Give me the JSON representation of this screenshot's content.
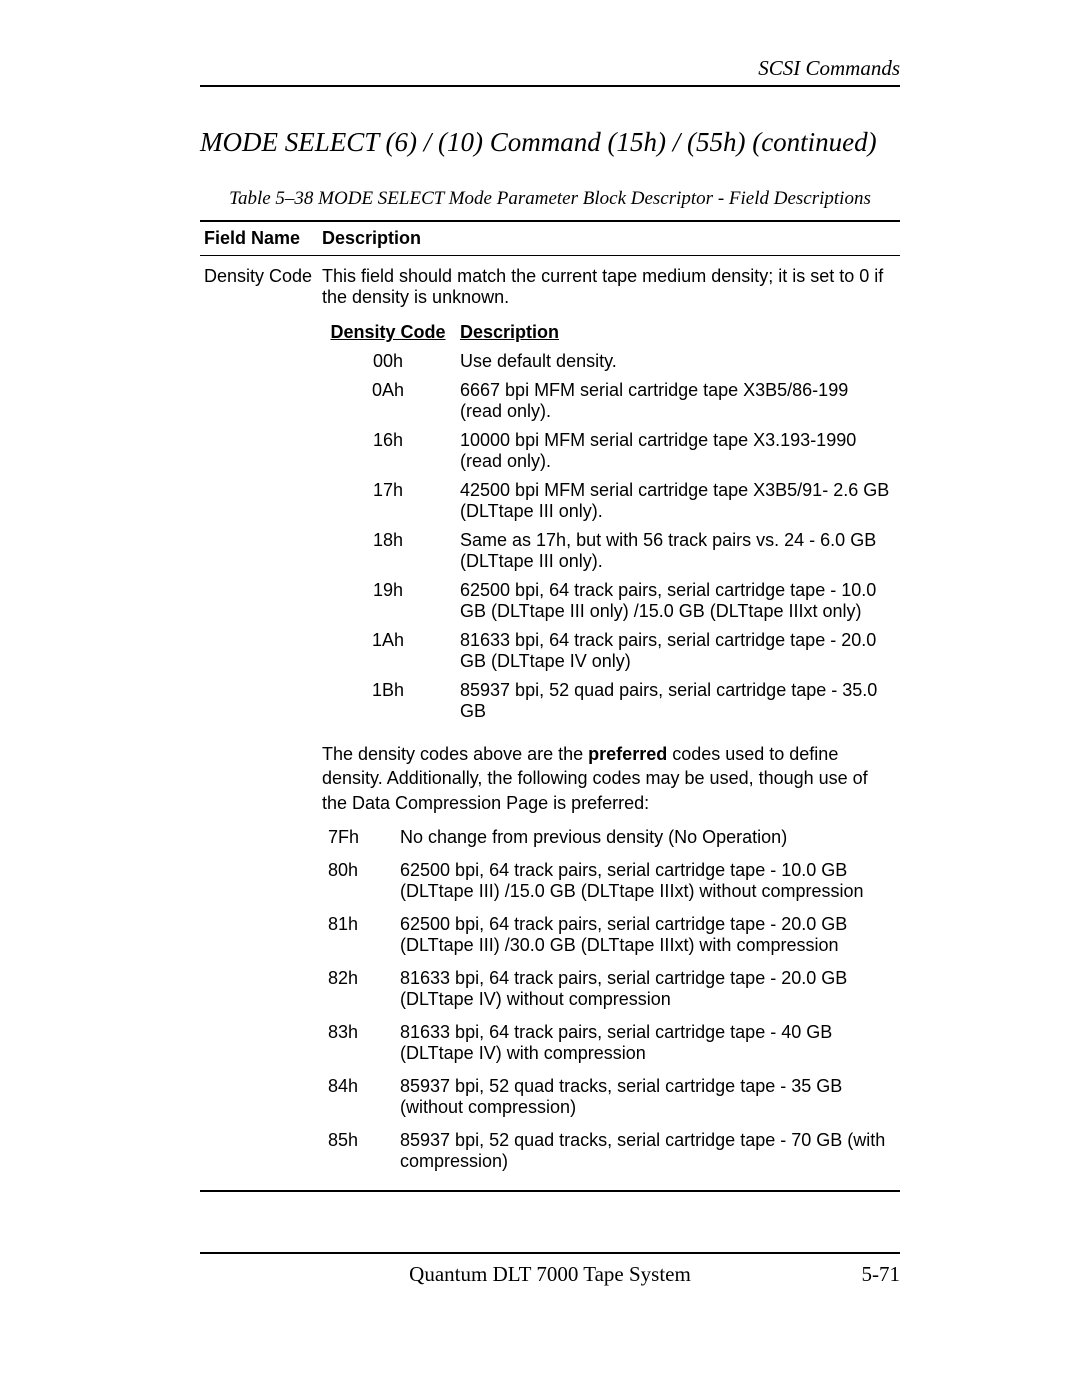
{
  "header": {
    "running_head": "SCSI Commands"
  },
  "section_title": "MODE SELECT   (6) / (10) Command (15h) / (55h)   (continued)",
  "table": {
    "caption": "Table 5–38  MODE SELECT Mode Parameter Block Descriptor - Field Descriptions",
    "columns": {
      "field": "Field Name",
      "desc": "Description"
    },
    "row": {
      "field_name": "Density Code",
      "intro": "This field should match the current tape medium density; it is set to 0 if the density is unknown.",
      "inner_headers": {
        "code": "Density Code",
        "desc": "Description"
      },
      "preferred_codes": [
        {
          "code": "00h",
          "desc": "Use default density."
        },
        {
          "code": "0Ah",
          "desc": "6667 bpi MFM serial cartridge tape X3B5/86-199 (read only)."
        },
        {
          "code": "16h",
          "desc": "10000 bpi MFM serial cartridge tape X3.193-1990 (read only)."
        },
        {
          "code": "17h",
          "desc": "42500 bpi MFM serial cartridge tape X3B5/91- 2.6 GB (DLTtape III only)."
        },
        {
          "code": "18h",
          "desc": "Same as 17h, but with 56 track pairs vs. 24 - 6.0 GB (DLTtape III only)."
        },
        {
          "code": "19h",
          "desc": "62500 bpi, 64 track pairs, serial cartridge tape - 10.0 GB (DLTtape III only) /15.0 GB (DLTtape IIIxt only)"
        },
        {
          "code": "1Ah",
          "desc": "81633 bpi, 64 track pairs, serial cartridge tape - 20.0 GB (DLTtape IV only)"
        },
        {
          "code": "1Bh",
          "desc": "85937 bpi, 52 quad pairs, serial cartridge tape - 35.0 GB"
        }
      ],
      "note_pre": "The density codes above are the ",
      "note_bold": "preferred",
      "note_post": " codes used to define density. Additionally, the following codes may be used, though use of the Data Compression Page is preferred:",
      "alt_codes": [
        {
          "code": "7Fh",
          "desc": "No change from previous density (No Operation)"
        },
        {
          "code": "80h",
          "desc": "62500 bpi, 64 track pairs, serial cartridge tape - 10.0 GB (DLTtape III)  /15.0 GB (DLTtape IIIxt) without compression"
        },
        {
          "code": "81h",
          "desc": "62500 bpi, 64 track pairs, serial cartridge tape - 20.0 GB (DLTtape III) /30.0 GB (DLTtape IIIxt) with compression"
        },
        {
          "code": "82h",
          "desc": "81633 bpi, 64 track pairs, serial cartridge tape - 20.0 GB (DLTtape IV) without compression"
        },
        {
          "code": "83h",
          "desc": "81633 bpi, 64 track pairs, serial cartridge tape - 40 GB (DLTtape IV) with compression"
        },
        {
          "code": "84h",
          "desc": "85937 bpi, 52 quad tracks, serial cartridge tape - 35 GB (without compression)"
        },
        {
          "code": "85h",
          "desc": "85937 bpi, 52 quad tracks, serial cartridge tape - 70 GB (with compression)"
        }
      ]
    }
  },
  "footer": {
    "center": "Quantum DLT 7000 Tape System",
    "page": "5-71"
  }
}
